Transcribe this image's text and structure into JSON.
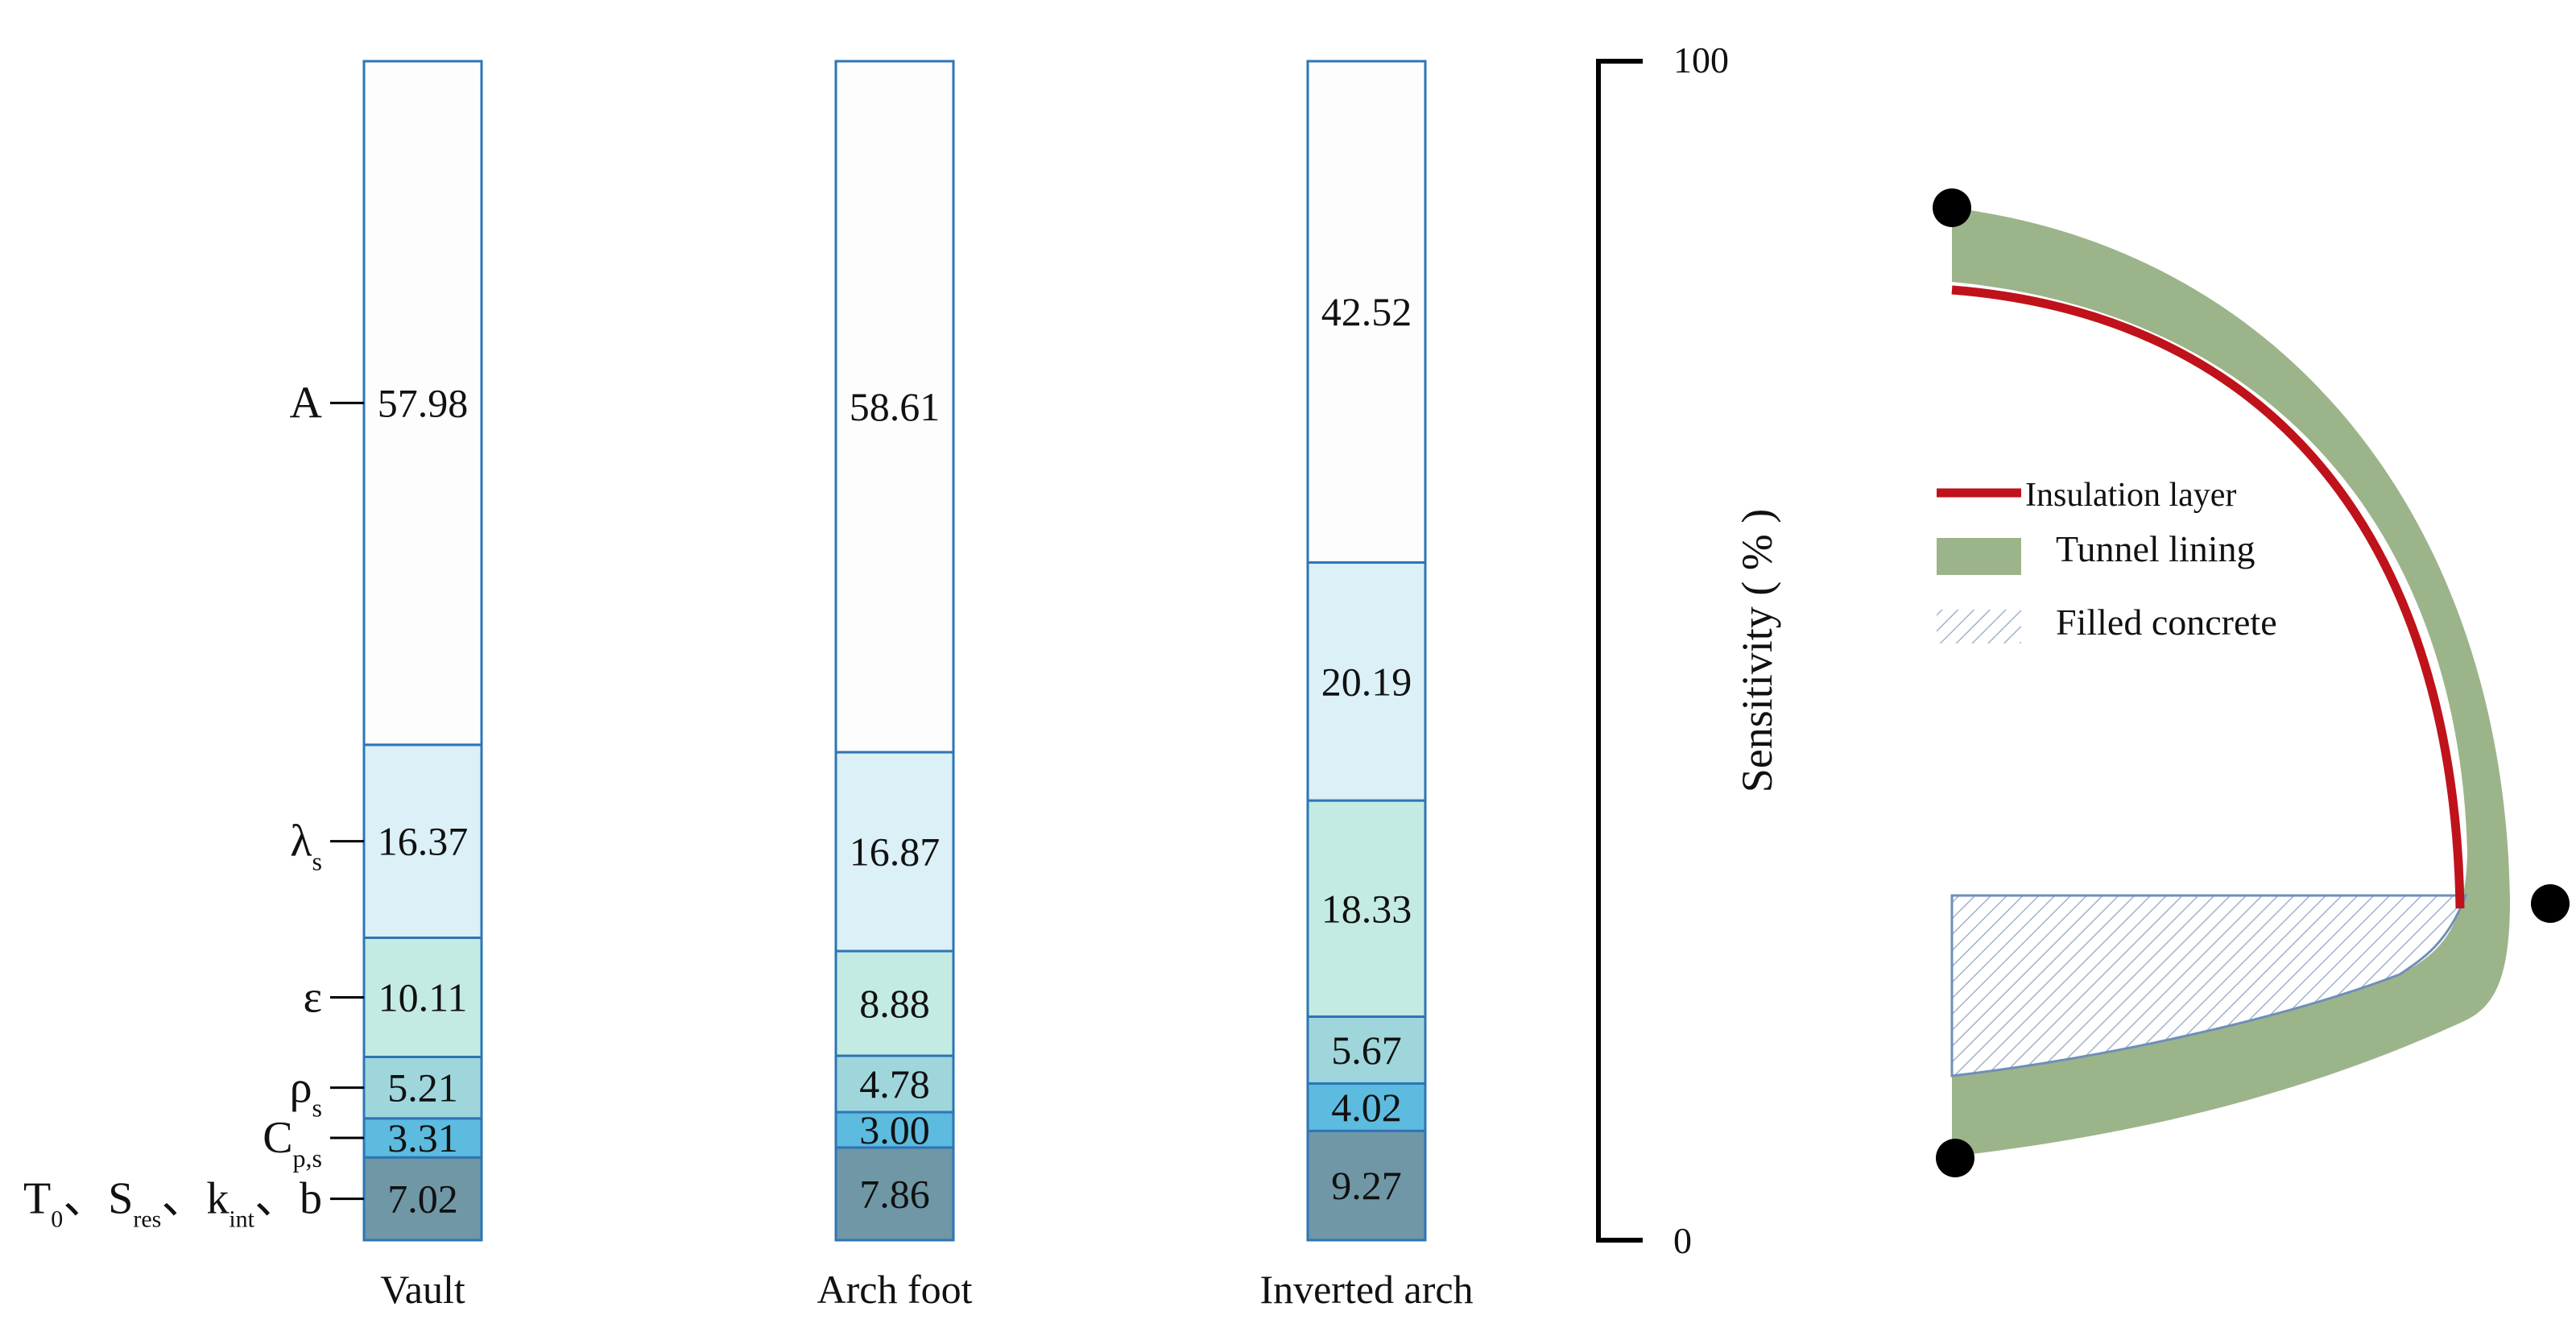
{
  "chart_data": {
    "type": "bar",
    "stacked": true,
    "percent_axis": {
      "label": "Sensitivity ( % )",
      "tick_labels": [
        "0",
        "100"
      ],
      "ylim": [
        0,
        100
      ]
    },
    "categories": [
      "Vault",
      "Arch foot",
      "Inverted arch"
    ],
    "series": [
      {
        "name": "T0、Sres、kint、b",
        "label_html": "T<tspan baseline-shift=\"sub\" font-size=\"30\">0</tspan>、S<tspan baseline-shift=\"sub\" font-size=\"30\">res</tspan>、k<tspan baseline-shift=\"sub\" font-size=\"30\">int</tspan>、b",
        "color": "#6f97a6",
        "values": [
          7.02,
          7.86,
          9.27
        ]
      },
      {
        "name": "Cp,s",
        "color": "#5cbbdf",
        "values": [
          3.31,
          3.0,
          4.02
        ]
      },
      {
        "name": "ρs",
        "color": "#9fd6dc",
        "values": [
          5.21,
          4.78,
          5.67
        ]
      },
      {
        "name": "ε",
        "color": "#c3ebe4",
        "values": [
          10.11,
          8.88,
          18.33
        ]
      },
      {
        "name": "λs",
        "color": "#dbf0f7",
        "values": [
          16.37,
          16.87,
          20.19
        ]
      },
      {
        "name": "A",
        "color": "#fdfdfd",
        "values": [
          57.98,
          58.61,
          42.52
        ]
      }
    ],
    "value_labels": [
      [
        "7.02",
        "3.31",
        "5.21",
        "10.11",
        "16.37",
        "57.98"
      ],
      [
        "7.86",
        "3.00",
        "4.78",
        "8.88",
        "16.87",
        "58.61"
      ],
      [
        "9.27",
        "4.02",
        "5.67",
        "18.33",
        "20.19",
        "42.52"
      ]
    ],
    "bar_outline_color": "#2e75b6"
  },
  "diagram": {
    "legend": [
      {
        "label": "Insulation layer",
        "color": "#c0121b",
        "kind": "line"
      },
      {
        "label": "Tunnel lining",
        "color": "#9cb48a",
        "kind": "patch"
      },
      {
        "label": "Filled concrete",
        "color": "#9fb3cf",
        "kind": "hatch"
      }
    ]
  }
}
